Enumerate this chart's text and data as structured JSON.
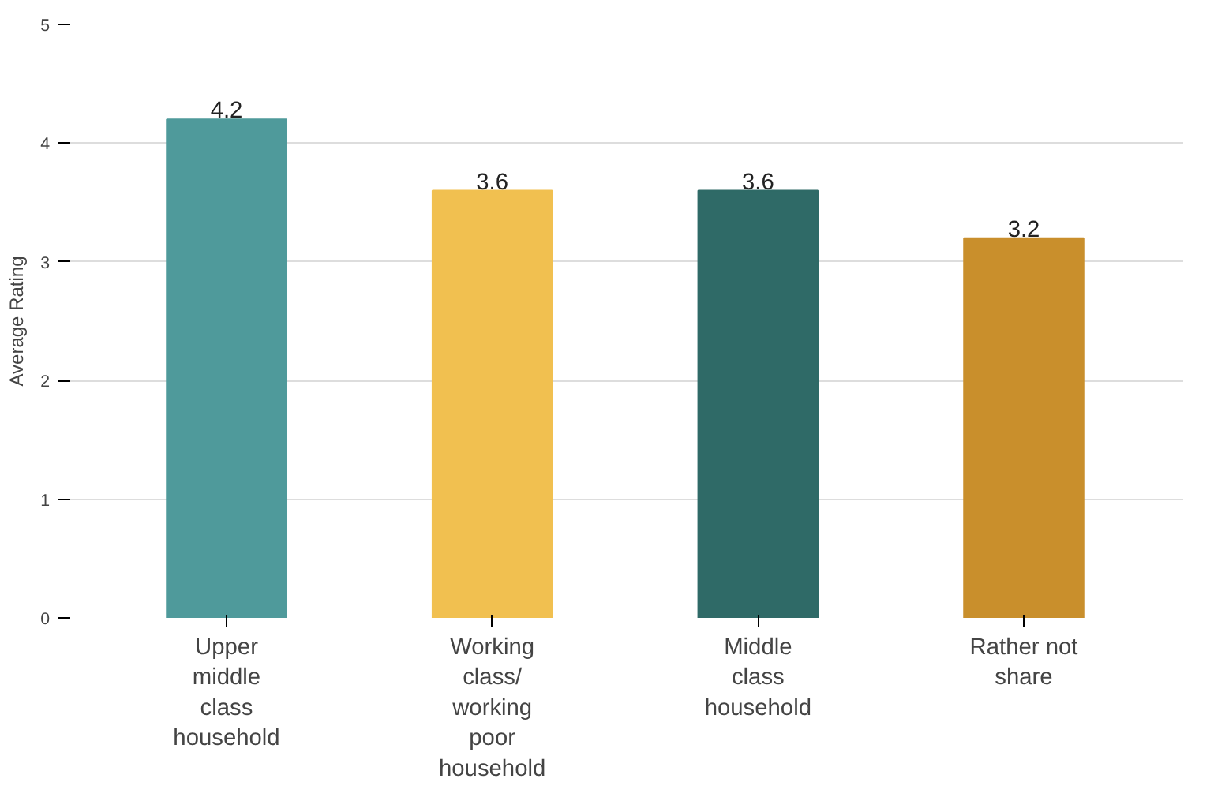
{
  "chart_data": {
    "type": "bar",
    "ylabel": "Average Rating",
    "categories": [
      "Upper\nmiddle\nclass\nhousehold",
      "Working\nclass/\nworking\npoor\nhousehold",
      "Middle\nclass\nhousehold",
      "Rather not\nshare"
    ],
    "values": [
      4.2,
      3.6,
      3.6,
      3.2
    ],
    "colors": [
      "#4f9a9b",
      "#f1c050",
      "#2f6a67",
      "#c98f2c"
    ],
    "ylim": [
      0,
      5
    ],
    "yticks": [
      0,
      1,
      2,
      3,
      4,
      5
    ],
    "grid": "y",
    "data_labels": true
  }
}
